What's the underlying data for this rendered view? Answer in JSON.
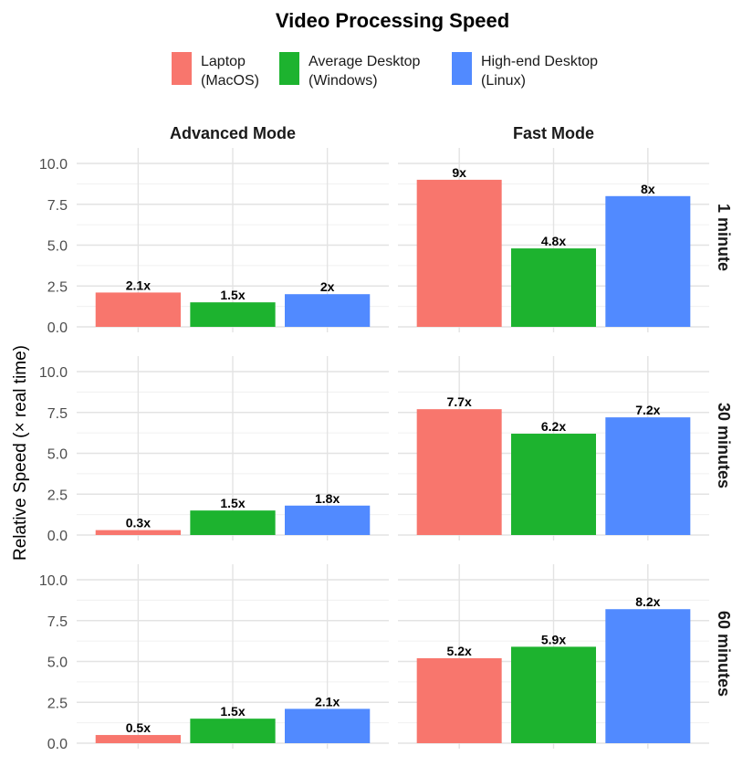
{
  "chart_data": {
    "type": "bar",
    "title": "Video Processing Speed",
    "ylabel": "Relative Speed (× real time)",
    "xlabel": "",
    "ylim": [
      0,
      10.5
    ],
    "yticks": [
      0,
      2.5,
      5,
      7.5,
      10
    ],
    "ytick_labels": [
      "0.0",
      "2.5",
      "5.0",
      "7.5",
      "10.0"
    ],
    "grid": true,
    "legend_position": "top",
    "categories": [
      "Laptop",
      "Average Desktop",
      "High-end Desktop"
    ],
    "legend": [
      {
        "line1": "Laptop",
        "line2": "(MacOS)",
        "color": "#F8766D"
      },
      {
        "line1": "Average Desktop",
        "line2": "(Windows)",
        "color": "#1DB32F"
      },
      {
        "line1": "High-end Desktop",
        "line2": "(Linux)",
        "color": "#518AFF"
      }
    ],
    "columns": [
      "Advanced Mode",
      "Fast Mode"
    ],
    "rows": [
      "1 minute",
      "30 minutes",
      "60 minutes"
    ],
    "panels": [
      {
        "row": "1 minute",
        "column": "Advanced Mode",
        "values": [
          2.1,
          1.5,
          2.0
        ],
        "labels": [
          "2.1x",
          "1.5x",
          "2x"
        ]
      },
      {
        "row": "1 minute",
        "column": "Fast Mode",
        "values": [
          9.0,
          4.8,
          8.0
        ],
        "labels": [
          "9x",
          "4.8x",
          "8x"
        ]
      },
      {
        "row": "30 minutes",
        "column": "Advanced Mode",
        "values": [
          0.3,
          1.5,
          1.8
        ],
        "labels": [
          "0.3x",
          "1.5x",
          "1.8x"
        ]
      },
      {
        "row": "30 minutes",
        "column": "Fast Mode",
        "values": [
          7.7,
          6.2,
          7.2
        ],
        "labels": [
          "7.7x",
          "6.2x",
          "7.2x"
        ]
      },
      {
        "row": "60 minutes",
        "column": "Advanced Mode",
        "values": [
          0.5,
          1.5,
          2.1
        ],
        "labels": [
          "0.5x",
          "1.5x",
          "2.1x"
        ]
      },
      {
        "row": "60 minutes",
        "column": "Fast Mode",
        "values": [
          5.2,
          5.9,
          8.2
        ],
        "labels": [
          "5.2x",
          "5.9x",
          "8.2x"
        ]
      }
    ]
  }
}
